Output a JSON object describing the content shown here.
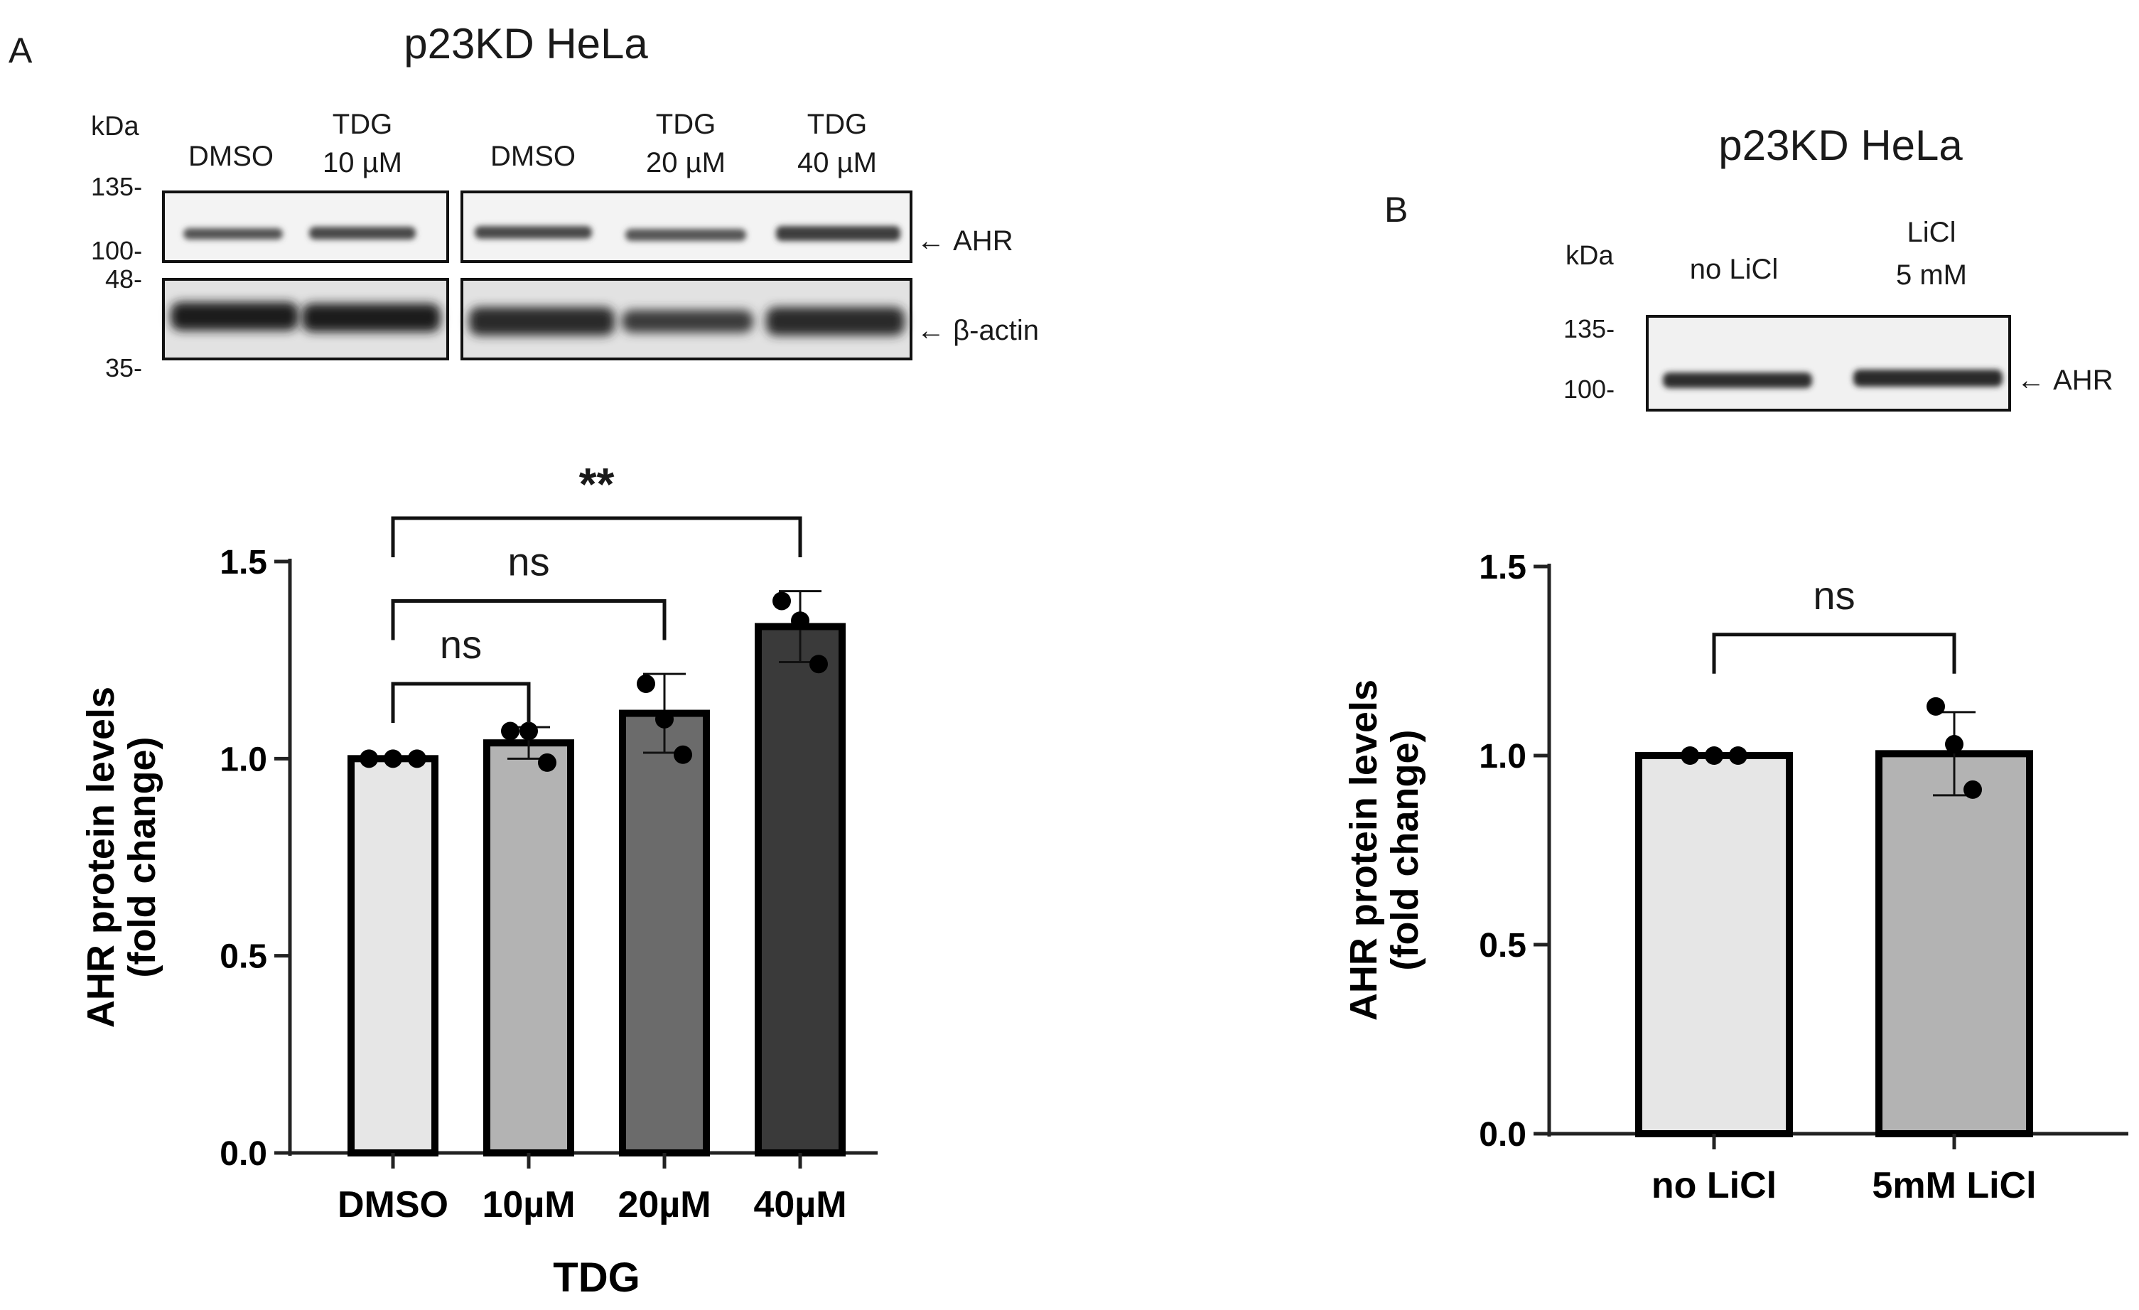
{
  "panel_a": {
    "letter": "A",
    "title": "p23KD HeLa",
    "blot": {
      "kda_label": "kDa",
      "markers": [
        "135-",
        "100-",
        "48-",
        "35-"
      ],
      "lanes_left": [
        {
          "line1": "DMSO",
          "line2": ""
        },
        {
          "line1": "TDG",
          "line2": "10 µM"
        }
      ],
      "lanes_right": [
        {
          "line1": "DMSO",
          "line2": ""
        },
        {
          "line1": "TDG",
          "line2": "20 µM"
        },
        {
          "line1": "TDG",
          "line2": "40 µM"
        }
      ],
      "target_label": "AHR",
      "loading_label": "β-actin"
    }
  },
  "panel_b": {
    "letter": "B",
    "title": "p23KD HeLa",
    "blot": {
      "kda_label": "kDa",
      "markers": [
        "135-",
        "100-"
      ],
      "lanes": [
        {
          "line1": "no LiCl",
          "line2": ""
        },
        {
          "line1": "LiCl",
          "line2": "5 mM"
        }
      ],
      "target_label": "AHR"
    }
  },
  "chart_data": [
    {
      "type": "bar",
      "panel": "A",
      "categories": [
        "DMSO",
        "10µM",
        "20µM",
        "40µM"
      ],
      "values": [
        1.0,
        1.04,
        1.115,
        1.335
      ],
      "error_sd": [
        0.0,
        0.04,
        0.1,
        0.09
      ],
      "points": [
        [
          1.0,
          1.0,
          1.0
        ],
        [
          1.07,
          1.07,
          0.99
        ],
        [
          1.19,
          1.1,
          1.01
        ],
        [
          1.4,
          1.35,
          1.24
        ]
      ],
      "bar_colors": [
        "#e6e6e6",
        "#b3b3b3",
        "#6b6b6b",
        "#3a3a3a"
      ],
      "xlabel": "TDG",
      "ylabel": [
        "AHR protein levels",
        "(fold change)"
      ],
      "ylim": [
        0,
        1.5
      ],
      "yticks": [
        "0.0",
        "0.5",
        "1.0",
        "1.5"
      ],
      "significance": [
        {
          "from": 0,
          "to": 1,
          "level": 1.19,
          "label": "ns"
        },
        {
          "from": 0,
          "to": 2,
          "level": 1.4,
          "label": "ns"
        },
        {
          "from": 0,
          "to": 3,
          "level": 1.61,
          "label": "**"
        }
      ]
    },
    {
      "type": "bar",
      "panel": "B",
      "categories": [
        "no LiCl",
        "5mM LiCl"
      ],
      "values": [
        1.0,
        1.005
      ],
      "error_sd": [
        0.0,
        0.11
      ],
      "points": [
        [
          1.0,
          1.0,
          1.0
        ],
        [
          1.13,
          1.03,
          0.91
        ]
      ],
      "bar_colors": [
        "#e6e6e6",
        "#b3b3b3"
      ],
      "xlabel": "",
      "ylabel": [
        "AHR protein levels",
        "(fold change)"
      ],
      "ylim": [
        0,
        1.5
      ],
      "yticks": [
        "0.0",
        "0.5",
        "1.0",
        "1.5"
      ],
      "significance": [
        {
          "from": 0,
          "to": 1,
          "level": 1.32,
          "label": "ns"
        }
      ]
    }
  ]
}
